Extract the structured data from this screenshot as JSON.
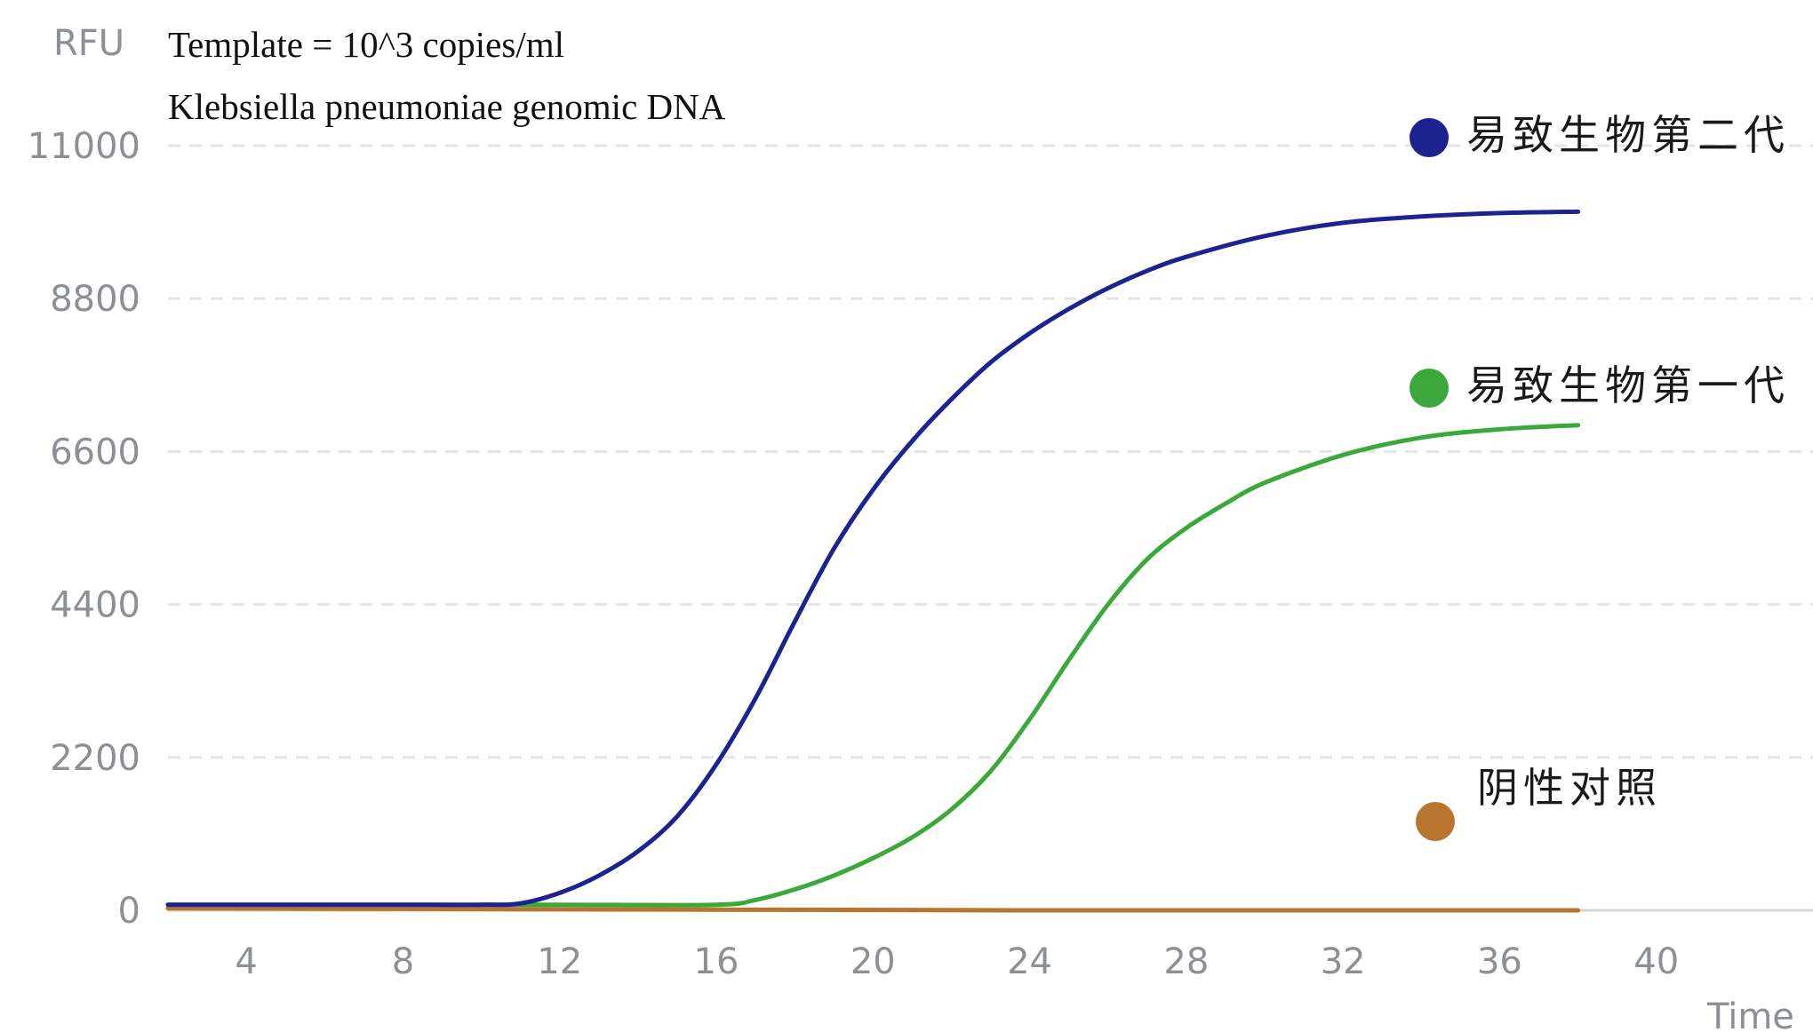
{
  "chart_data": {
    "type": "line",
    "annotations": [
      "Template = 10^3 copies/ml",
      "Klebsiella pneumoniae genomic DNA"
    ],
    "xlabel": "Time",
    "ylabel": "RFU",
    "x_ticks": [
      4,
      8,
      12,
      16,
      20,
      24,
      28,
      32,
      36,
      40
    ],
    "y_ticks": [
      0,
      2200,
      4400,
      6600,
      8800,
      11000
    ],
    "xlim": [
      2,
      44
    ],
    "ylim": [
      0,
      11000
    ],
    "grid": true,
    "grid_style": "dashed horizontal",
    "legend_placement": "right",
    "series": [
      {
        "name": "易致生物第二代",
        "color": "#1c2390",
        "x": [
          2,
          4,
          6,
          8,
          10,
          11,
          12,
          13,
          14,
          15,
          16,
          17,
          18,
          19,
          20,
          21,
          22,
          23,
          24,
          25,
          26,
          27,
          28,
          30,
          32,
          34,
          36,
          38
        ],
        "y": [
          80,
          80,
          80,
          80,
          80,
          100,
          250,
          500,
          850,
          1350,
          2100,
          3050,
          4150,
          5200,
          6050,
          6750,
          7350,
          7880,
          8300,
          8650,
          8950,
          9200,
          9400,
          9700,
          9890,
          9980,
          10030,
          10050
        ]
      },
      {
        "name": "易致生物第一代",
        "color": "#3aa83a",
        "x": [
          2,
          4,
          8,
          12,
          16,
          17,
          18,
          19,
          20,
          21,
          22,
          23,
          24,
          25,
          26,
          27,
          28,
          29,
          30,
          32,
          34,
          36,
          38
        ],
        "y": [
          80,
          80,
          80,
          80,
          80,
          150,
          300,
          500,
          750,
          1050,
          1450,
          2000,
          2750,
          3600,
          4400,
          5050,
          5500,
          5850,
          6150,
          6550,
          6800,
          6920,
          6980
        ]
      },
      {
        "name": "阴性对照",
        "color": "#b8752f",
        "x": [
          2,
          8,
          16,
          24,
          32,
          38
        ],
        "y": [
          30,
          20,
          10,
          0,
          0,
          0
        ]
      }
    ]
  }
}
